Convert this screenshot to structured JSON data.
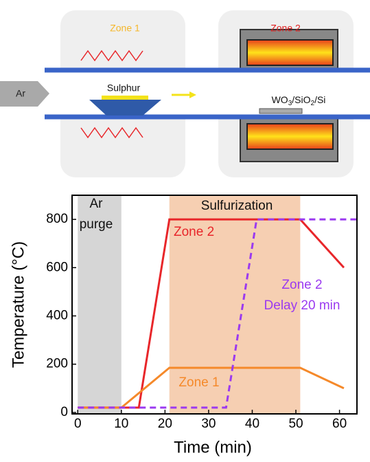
{
  "schematic": {
    "zone1": "Zone 1",
    "zone2": "Zone 2",
    "gas": "Ar",
    "source": "Sulphur",
    "substrate": [
      "WO",
      "3",
      "/SiO",
      "2",
      "/Si"
    ]
  },
  "chart_data": {
    "type": "line",
    "x_label": "Time (min)",
    "y_label": "Temperature (°C)",
    "xlim": [
      -1.3,
      64
    ],
    "ylim": [
      -6,
      900
    ],
    "xticks": [
      0,
      10,
      20,
      30,
      40,
      50,
      60
    ],
    "yticks": [
      0,
      200,
      400,
      600,
      800
    ],
    "regions": [
      {
        "label": [
          "Ar",
          "purge"
        ],
        "start": 0,
        "end": 10,
        "color": "#d6d6d6"
      },
      {
        "label": [
          "Sulfurization"
        ],
        "start": 21,
        "end": 51,
        "color": "#f6cfb2"
      }
    ],
    "series": [
      {
        "name": "Zone 2",
        "color": "#e8262a",
        "dash": false,
        "x": [
          0,
          14,
          21,
          51,
          61
        ],
        "values": [
          20,
          20,
          800,
          800,
          600
        ]
      },
      {
        "name": "Zone 1",
        "color": "#f5892a",
        "dash": false,
        "x": [
          0,
          10,
          21,
          51,
          61
        ],
        "values": [
          20,
          20,
          185,
          185,
          100
        ]
      },
      {
        "name": "Zone 2",
        "note": "Delay 20 min",
        "color": "#9b3af0",
        "dash": true,
        "x": [
          0,
          34,
          41,
          64
        ],
        "values": [
          20,
          20,
          800,
          800
        ]
      }
    ]
  }
}
